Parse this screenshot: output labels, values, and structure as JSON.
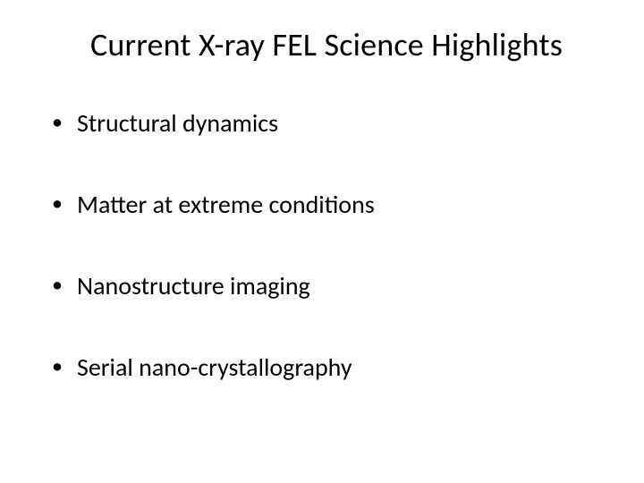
{
  "slide": {
    "title": "Current X-ray FEL Science Highlights",
    "title_fontsize": 36,
    "title_color": "#000000",
    "background_color": "#ffffff",
    "bullets": [
      "Structural dynamics",
      "Matter at extreme conditions",
      "Nanostructure imaging",
      "Serial nano-crystallography"
    ],
    "bullet_fontsize": 28,
    "bullet_color": "#000000",
    "bullet_marker": "•",
    "font_family": "Calibri"
  }
}
